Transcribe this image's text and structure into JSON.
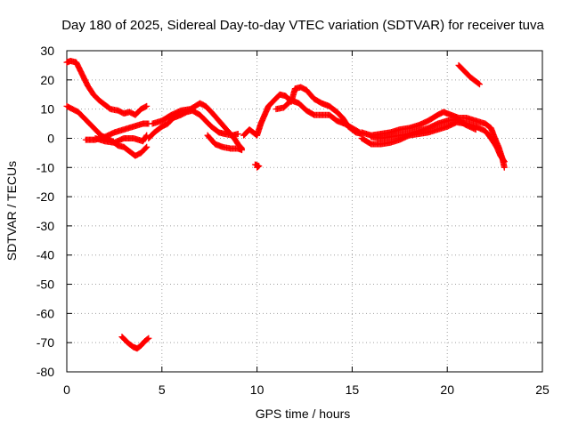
{
  "chart_data": {
    "type": "scatter",
    "title": "Day 180 of 2025, Sidereal Day-to-day VTEC variation (SDTVAR) for receiver tuva",
    "xlabel": "GPS time / hours",
    "ylabel": "SDTVAR / TECUs",
    "xlim": [
      0,
      25
    ],
    "ylim": [
      -80,
      30
    ],
    "xticks": [
      0,
      5,
      10,
      15,
      20,
      25
    ],
    "yticks": [
      30,
      20,
      10,
      0,
      -10,
      -20,
      -30,
      -40,
      -50,
      -60,
      -70,
      -80
    ],
    "grid": true,
    "marker": "plus",
    "color": "#ff0000",
    "series": [
      {
        "name": "track-1",
        "points": [
          [
            0.0,
            26
          ],
          [
            0.2,
            26.5
          ],
          [
            0.5,
            26
          ],
          [
            0.8,
            22
          ],
          [
            1.1,
            18
          ],
          [
            1.4,
            15
          ],
          [
            1.7,
            13
          ],
          [
            2.0,
            11.5
          ],
          [
            2.3,
            10
          ],
          [
            2.7,
            9.5
          ],
          [
            3.0,
            8.5
          ],
          [
            3.3,
            9
          ],
          [
            3.6,
            8
          ],
          [
            3.9,
            10
          ],
          [
            4.2,
            11
          ]
        ]
      },
      {
        "name": "track-2",
        "points": [
          [
            0.0,
            11
          ],
          [
            0.3,
            10
          ],
          [
            0.6,
            9
          ],
          [
            0.9,
            7
          ],
          [
            1.2,
            5
          ],
          [
            1.5,
            3
          ],
          [
            1.8,
            1
          ],
          [
            2.1,
            0
          ],
          [
            2.4,
            -1
          ],
          [
            2.7,
            -2.5
          ],
          [
            3.0,
            -3
          ],
          [
            3.3,
            -4.5
          ],
          [
            3.6,
            -6
          ],
          [
            3.9,
            -5
          ],
          [
            4.2,
            -3
          ]
        ]
      },
      {
        "name": "track-3",
        "points": [
          [
            1.0,
            -0.5
          ],
          [
            1.5,
            -0.5
          ],
          [
            2.0,
            0.5
          ],
          [
            2.5,
            2
          ],
          [
            3.0,
            3
          ],
          [
            3.5,
            4
          ],
          [
            4.0,
            5
          ],
          [
            4.3,
            5
          ]
        ]
      },
      {
        "name": "track-4",
        "points": [
          [
            1.5,
            0
          ],
          [
            2.0,
            -1
          ],
          [
            2.5,
            -1.5
          ],
          [
            3.0,
            0
          ],
          [
            3.5,
            0
          ],
          [
            4.0,
            -1
          ],
          [
            4.2,
            1
          ]
        ]
      },
      {
        "name": "track-5",
        "points": [
          [
            4.3,
            0
          ],
          [
            4.6,
            2
          ],
          [
            5.0,
            4
          ],
          [
            5.3,
            5
          ],
          [
            5.6,
            7
          ],
          [
            6.0,
            8
          ],
          [
            6.3,
            9
          ],
          [
            6.6,
            9.5
          ],
          [
            7.0,
            8
          ],
          [
            7.3,
            6
          ],
          [
            7.6,
            4
          ],
          [
            8.0,
            2
          ],
          [
            8.3,
            1.5
          ],
          [
            8.7,
            1
          ],
          [
            9.0,
            1.5
          ]
        ]
      },
      {
        "name": "track-6",
        "points": [
          [
            4.5,
            5
          ],
          [
            5.0,
            6
          ],
          [
            5.5,
            8
          ],
          [
            6.0,
            9.5
          ],
          [
            6.5,
            10
          ],
          [
            7.0,
            12
          ],
          [
            7.3,
            11
          ],
          [
            7.6,
            9
          ],
          [
            8.0,
            6
          ],
          [
            8.4,
            3
          ],
          [
            8.8,
            0
          ],
          [
            9.0,
            -2
          ],
          [
            9.2,
            -3.5
          ]
        ]
      },
      {
        "name": "track-7",
        "points": [
          [
            7.4,
            1
          ],
          [
            7.8,
            -2
          ],
          [
            8.2,
            -3
          ],
          [
            8.6,
            -3.5
          ],
          [
            9.0,
            -3.5
          ],
          [
            9.2,
            -4
          ]
        ]
      },
      {
        "name": "track-8",
        "points": [
          [
            9.3,
            1
          ],
          [
            9.6,
            3
          ],
          [
            10.0,
            1
          ],
          [
            10.2,
            5
          ],
          [
            10.4,
            8
          ],
          [
            10.6,
            11
          ],
          [
            10.9,
            13
          ],
          [
            11.2,
            15
          ],
          [
            11.5,
            14.5
          ],
          [
            11.8,
            12.5
          ],
          [
            12.0,
            17
          ],
          [
            12.3,
            17.5
          ],
          [
            12.6,
            16.5
          ],
          [
            13.0,
            13.5
          ],
          [
            13.4,
            12
          ],
          [
            13.8,
            11
          ],
          [
            14.2,
            9
          ],
          [
            14.5,
            7
          ],
          [
            14.8,
            4
          ],
          [
            15.2,
            2
          ],
          [
            15.5,
            1.5
          ]
        ]
      },
      {
        "name": "track-9",
        "points": [
          [
            11.0,
            10
          ],
          [
            11.4,
            10.5
          ],
          [
            11.8,
            13
          ],
          [
            12.2,
            12
          ],
          [
            12.6,
            9.5
          ],
          [
            13.0,
            8
          ],
          [
            13.4,
            8
          ],
          [
            13.8,
            8
          ],
          [
            14.2,
            6
          ],
          [
            14.6,
            5
          ],
          [
            15.0,
            3.5
          ],
          [
            15.4,
            2
          ]
        ]
      },
      {
        "name": "track-10",
        "points": [
          [
            10.0,
            -10
          ],
          [
            10.1,
            -9.5
          ],
          [
            9.9,
            -9
          ]
        ]
      },
      {
        "name": "track-11",
        "points": [
          [
            15.5,
            2
          ],
          [
            16.0,
            1
          ],
          [
            16.5,
            1.5
          ],
          [
            17.0,
            2
          ],
          [
            17.5,
            3
          ],
          [
            18.0,
            3.5
          ],
          [
            18.5,
            4.5
          ],
          [
            19.0,
            6
          ],
          [
            19.5,
            8
          ],
          [
            19.8,
            9
          ],
          [
            20.2,
            8
          ],
          [
            20.6,
            7
          ],
          [
            21.0,
            7
          ],
          [
            21.5,
            6
          ],
          [
            22.0,
            5
          ],
          [
            22.3,
            3.5
          ],
          [
            22.5,
            0
          ],
          [
            22.7,
            -3
          ],
          [
            22.9,
            -7
          ],
          [
            23.0,
            -10
          ]
        ]
      },
      {
        "name": "track-12",
        "points": [
          [
            15.5,
            0
          ],
          [
            16.0,
            -2
          ],
          [
            16.5,
            -2
          ],
          [
            17.0,
            -1.5
          ],
          [
            17.5,
            -0.5
          ],
          [
            18.0,
            1
          ],
          [
            18.5,
            1.5
          ],
          [
            19.0,
            2
          ],
          [
            19.5,
            3
          ],
          [
            20.0,
            4
          ],
          [
            20.5,
            5.5
          ],
          [
            21.0,
            5
          ],
          [
            21.5,
            4
          ],
          [
            22.0,
            2.5
          ],
          [
            22.3,
            0
          ],
          [
            22.6,
            -3
          ],
          [
            22.8,
            -6
          ],
          [
            23.0,
            -8
          ]
        ]
      },
      {
        "name": "track-13",
        "points": [
          [
            16.0,
            0.5
          ],
          [
            16.5,
            0
          ],
          [
            17.0,
            0.5
          ],
          [
            17.5,
            1
          ],
          [
            18.0,
            1.5
          ],
          [
            18.5,
            2.5
          ],
          [
            19.0,
            3.5
          ],
          [
            19.5,
            5
          ],
          [
            20.0,
            6
          ],
          [
            20.5,
            6.5
          ],
          [
            21.0,
            4.5
          ],
          [
            21.5,
            3
          ]
        ]
      },
      {
        "name": "track-14",
        "points": [
          [
            20.6,
            25
          ],
          [
            20.9,
            23
          ],
          [
            21.2,
            21
          ],
          [
            21.5,
            19.5
          ],
          [
            21.7,
            18.5
          ]
        ]
      },
      {
        "name": "track-15",
        "points": [
          [
            2.9,
            -68
          ],
          [
            3.2,
            -70
          ],
          [
            3.5,
            -71.5
          ],
          [
            3.7,
            -72
          ],
          [
            3.9,
            -71
          ],
          [
            4.1,
            -69.5
          ],
          [
            4.3,
            -68.5
          ]
        ]
      }
    ]
  }
}
